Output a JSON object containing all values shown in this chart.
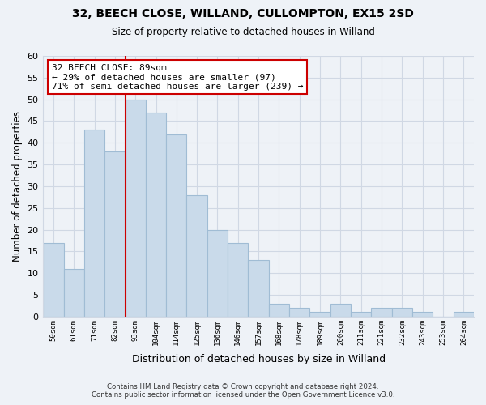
{
  "title": "32, BEECH CLOSE, WILLAND, CULLOMPTON, EX15 2SD",
  "subtitle": "Size of property relative to detached houses in Willand",
  "xlabel": "Distribution of detached houses by size in Willand",
  "ylabel": "Number of detached properties",
  "bin_labels": [
    "50sqm",
    "61sqm",
    "71sqm",
    "82sqm",
    "93sqm",
    "104sqm",
    "114sqm",
    "125sqm",
    "136sqm",
    "146sqm",
    "157sqm",
    "168sqm",
    "178sqm",
    "189sqm",
    "200sqm",
    "211sqm",
    "221sqm",
    "232sqm",
    "243sqm",
    "253sqm",
    "264sqm"
  ],
  "bar_values": [
    17,
    11,
    43,
    38,
    50,
    47,
    42,
    28,
    20,
    17,
    13,
    3,
    2,
    1,
    3,
    1,
    2,
    2,
    1,
    0,
    1
  ],
  "bar_color": "#c9daea",
  "bar_edge_color": "#a0bcd4",
  "ylim": [
    0,
    60
  ],
  "yticks": [
    0,
    5,
    10,
    15,
    20,
    25,
    30,
    35,
    40,
    45,
    50,
    55,
    60
  ],
  "property_line_index": 4,
  "annotation_title": "32 BEECH CLOSE: 89sqm",
  "annotation_line1": "← 29% of detached houses are smaller (97)",
  "annotation_line2": "71% of semi-detached houses are larger (239) →",
  "annotation_box_color": "#ffffff",
  "annotation_box_edge_color": "#cc0000",
  "property_line_color": "#cc0000",
  "footer_line1": "Contains HM Land Registry data © Crown copyright and database right 2024.",
  "footer_line2": "Contains public sector information licensed under the Open Government Licence v3.0.",
  "background_color": "#eef2f7",
  "grid_color": "#d0d8e4"
}
